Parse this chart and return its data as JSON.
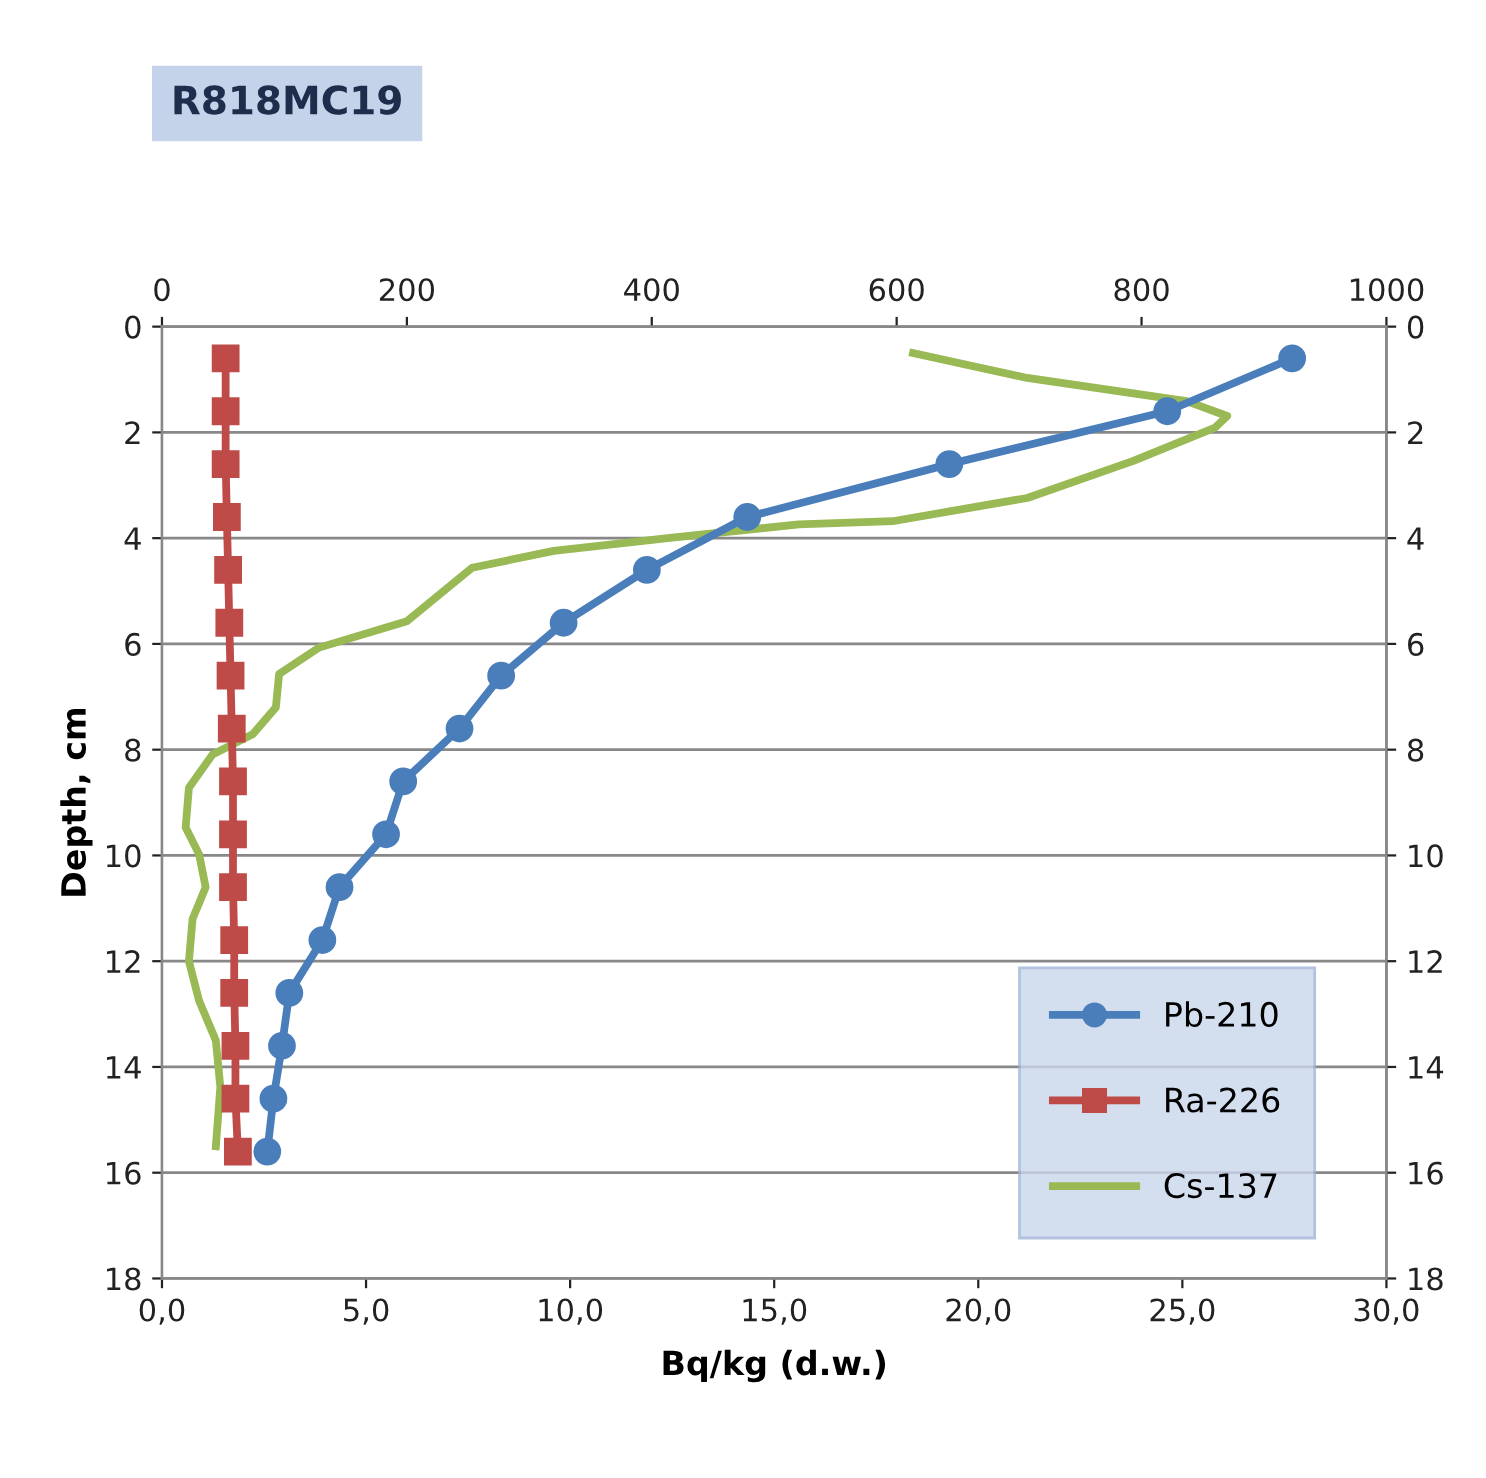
{
  "chart_data": {
    "type": "line",
    "title": "R818MC19",
    "xlabel": "Bq/kg (d.w.)",
    "ylabel": "Depth, cm",
    "xlim": [
      0,
      30
    ],
    "xticks": [
      {
        "value": 0,
        "label": "0,0"
      },
      {
        "value": 5,
        "label": "5,0"
      },
      {
        "value": 10,
        "label": "10,0"
      },
      {
        "value": 15,
        "label": "15,0"
      },
      {
        "value": 20,
        "label": "20,0"
      },
      {
        "value": 25,
        "label": "25,0"
      },
      {
        "value": 30,
        "label": "30,0"
      }
    ],
    "x2lim": [
      0,
      1000
    ],
    "x2ticks": [
      0,
      200,
      400,
      600,
      800,
      1000
    ],
    "ylim": [
      18,
      0
    ],
    "yticks": [
      0,
      2,
      4,
      6,
      8,
      10,
      12,
      14,
      16,
      18
    ],
    "y2lim": [
      18,
      0
    ],
    "y2ticks": [
      0,
      2,
      4,
      6,
      8,
      10,
      12,
      14,
      16,
      18
    ],
    "grid": "y",
    "legend": "bottom right",
    "series": [
      {
        "name": "Pb-210",
        "color": "#4a7ebb",
        "axis": "x2",
        "marker": "circle",
        "x": [
          923,
          821,
          643,
          478,
          396,
          328,
          277,
          243,
          197,
          183,
          145,
          131,
          104,
          98,
          91,
          86
        ],
        "values": [
          0.6,
          1.6,
          2.6,
          3.6,
          4.6,
          5.6,
          6.6,
          7.6,
          8.6,
          9.6,
          10.6,
          11.6,
          12.6,
          13.6,
          14.6,
          15.6
        ]
      },
      {
        "name": "Ra-226",
        "color": "#be4b48",
        "axis": "x2",
        "marker": "square",
        "x": [
          52,
          52,
          52,
          53,
          54,
          55,
          56,
          57,
          58,
          58,
          58,
          59,
          59,
          60,
          60,
          62
        ],
        "values": [
          0.6,
          1.6,
          2.6,
          3.6,
          4.6,
          5.6,
          6.6,
          7.6,
          8.6,
          9.6,
          10.6,
          11.6,
          12.6,
          13.6,
          14.6,
          15.6
        ]
      },
      {
        "name": "Cs-137",
        "color": "#98b954",
        "marker": "none",
        "x": [
          18.4,
          21.2,
          25.1,
          26.1,
          25.8,
          23.8,
          21.2,
          17.9,
          15.6,
          12.5,
          9.6,
          7.6,
          7.0,
          6.0,
          3.85,
          2.87,
          2.79,
          2.22,
          1.24,
          0.66,
          0.58,
          0.91,
          1.07,
          0.75,
          0.66,
          0.91,
          1.32,
          1.43,
          1.32
        ],
        "values": [
          0.5,
          0.97,
          1.41,
          1.69,
          1.91,
          2.54,
          3.24,
          3.68,
          3.74,
          3.99,
          4.24,
          4.56,
          4.94,
          5.57,
          6.07,
          6.57,
          7.2,
          7.71,
          8.09,
          8.72,
          9.47,
          9.98,
          10.6,
          11.2,
          12.0,
          12.75,
          13.5,
          14.38,
          15.5
        ]
      }
    ]
  }
}
